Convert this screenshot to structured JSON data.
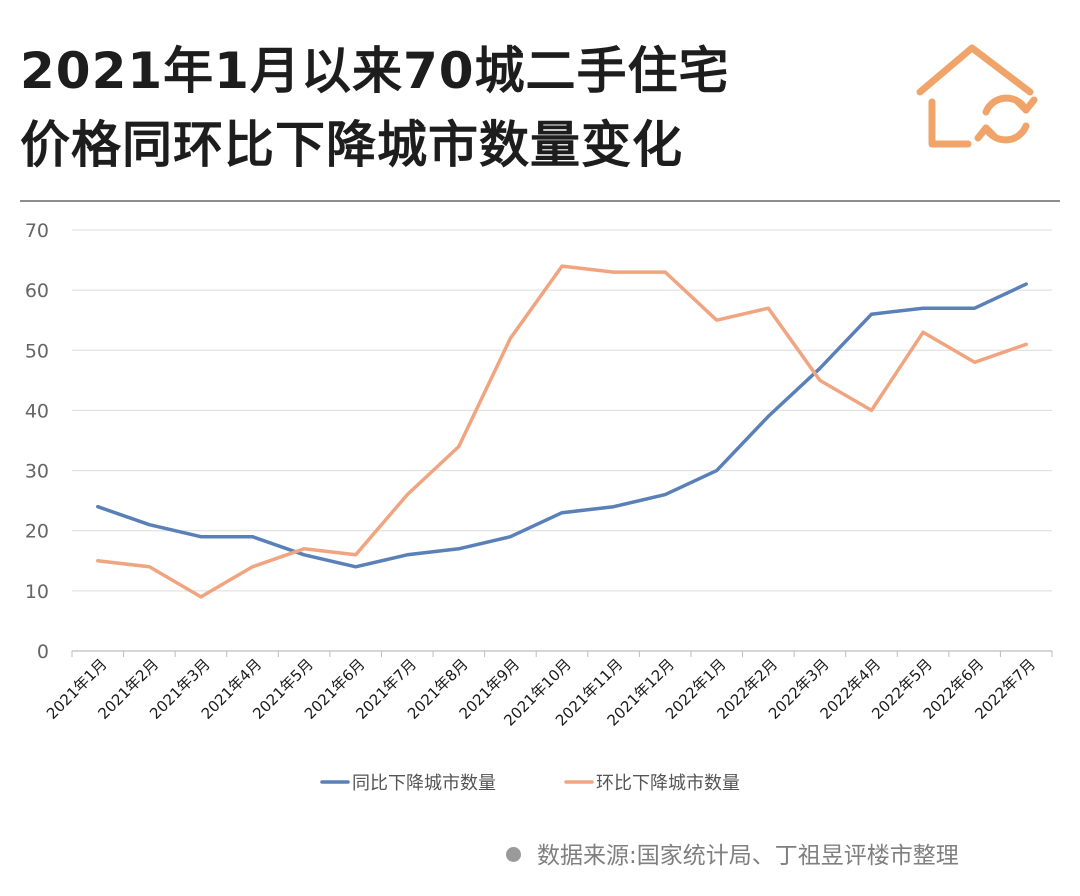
{
  "title": {
    "line1": "2021年1月以来70城二手住宅",
    "line2": "价格同环比下降城市数量变化"
  },
  "logo": {
    "icon": "house-cycle-icon",
    "color": "#f0a46a"
  },
  "source": "数据来源:国家统计局、丁祖昱评楼市整理",
  "chart_data": {
    "type": "line",
    "categories": [
      "2021年1月",
      "2021年2月",
      "2021年3月",
      "2021年4月",
      "2021年5月",
      "2021年6月",
      "2021年7月",
      "2021年8月",
      "2021年9月",
      "2021年10月",
      "2021年11月",
      "2021年12月",
      "2022年1月",
      "2022年2月",
      "2022年3月",
      "2022年4月",
      "2022年5月",
      "2022年6月",
      "2022年7月"
    ],
    "series": [
      {
        "name": "同比下降城市数量",
        "color": "#5a80b8",
        "values": [
          24,
          21,
          19,
          19,
          16,
          14,
          16,
          17,
          19,
          23,
          24,
          26,
          30,
          39,
          47,
          56,
          57,
          57,
          61
        ]
      },
      {
        "name": "环比下降城市数量",
        "color": "#f0a580",
        "values": [
          15,
          14,
          9,
          14,
          17,
          16,
          26,
          34,
          52,
          64,
          63,
          63,
          55,
          57,
          45,
          40,
          53,
          48,
          51
        ]
      }
    ],
    "yticks": [
      0,
      10,
      20,
      30,
      40,
      50,
      60,
      70
    ],
    "ylim": [
      0,
      70
    ],
    "grid": true,
    "legend": "bottom",
    "xlabel": "",
    "ylabel": ""
  }
}
